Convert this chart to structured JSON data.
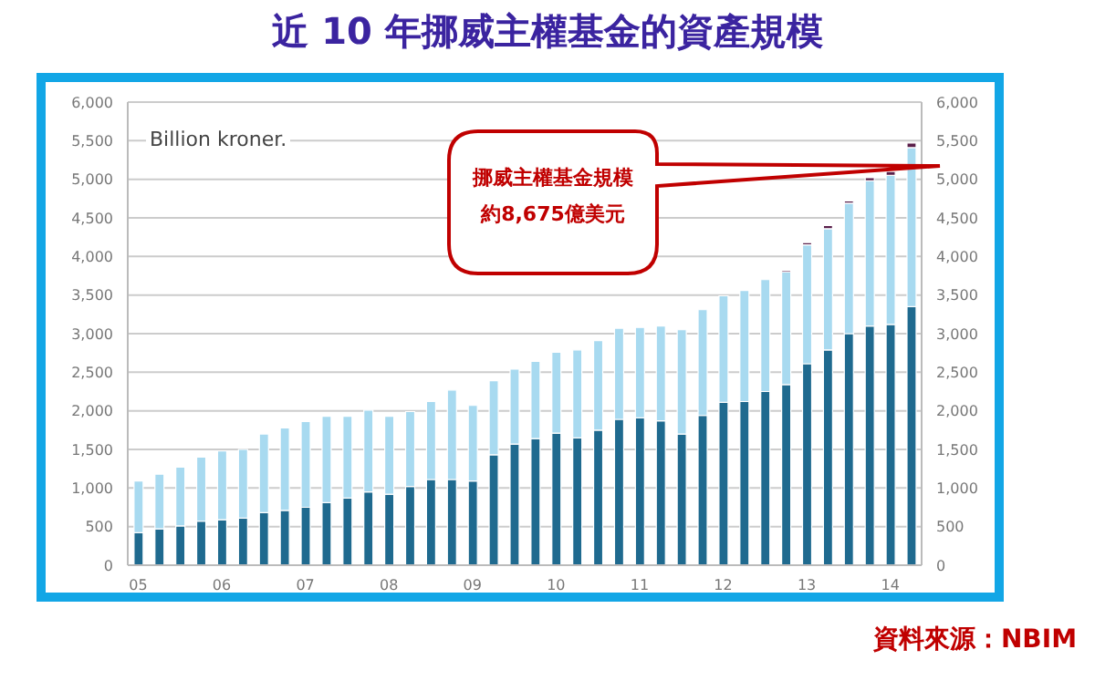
{
  "chart_data": {
    "type": "bar",
    "title": "近 10 年挪威主權基金的資產規模",
    "stacked": true,
    "grid": "y",
    "categories": [
      "05",
      null,
      null,
      null,
      "06",
      null,
      null,
      null,
      "07",
      null,
      null,
      null,
      "08",
      null,
      null,
      null,
      "09",
      null,
      null,
      null,
      "10",
      null,
      null,
      null,
      "11",
      null,
      null,
      null,
      "12",
      null,
      null,
      null,
      "13",
      null,
      null,
      null,
      "14",
      null
    ],
    "series": [
      {
        "color": "#1f6a8f",
        "values": [
          420,
          470,
          510,
          570,
          590,
          610,
          680,
          710,
          750,
          810,
          870,
          950,
          920,
          1020,
          1110,
          1110,
          1090,
          1430,
          1570,
          1640,
          1710,
          1650,
          1750,
          1890,
          1910,
          1870,
          1700,
          1940,
          2110,
          2120,
          2250,
          2340,
          2610,
          2790,
          3000,
          3100,
          3120,
          3350
        ]
      },
      {
        "color": "#a8daf0",
        "values": [
          670,
          710,
          760,
          830,
          890,
          890,
          1020,
          1070,
          1110,
          1120,
          1060,
          1060,
          1010,
          970,
          1010,
          1160,
          980,
          960,
          970,
          1000,
          1050,
          1140,
          1160,
          1180,
          1170,
          1230,
          1350,
          1370,
          1380,
          1440,
          1450,
          1460,
          1540,
          1570,
          1690,
          1880,
          1930,
          2060
        ]
      },
      {
        "color": "#5a1f4a",
        "values": [
          null,
          null,
          null,
          null,
          null,
          null,
          null,
          null,
          null,
          null,
          null,
          null,
          null,
          null,
          null,
          null,
          null,
          null,
          null,
          null,
          null,
          null,
          null,
          null,
          null,
          null,
          null,
          null,
          null,
          null,
          null,
          20,
          30,
          40,
          30,
          40,
          50,
          60
        ]
      }
    ],
    "ylim": [
      0,
      6000
    ],
    "yticks": [
      0,
      500,
      {
        "value": 1000,
        "label": "1,000"
      },
      {
        "value": 1500,
        "label": "1,500"
      },
      {
        "value": 2000,
        "label": "2,000"
      },
      {
        "value": 2500,
        "label": "2,500"
      },
      {
        "value": 3000,
        "label": "3,000"
      },
      {
        "value": 3500,
        "label": "3,500"
      },
      {
        "value": 4000,
        "label": "4,000"
      },
      {
        "value": 4500,
        "label": "4,500"
      },
      {
        "value": 5000,
        "label": "5,000"
      },
      {
        "value": 5500,
        "label": "5,500"
      },
      {
        "value": 6000,
        "label": "6,000"
      }
    ],
    "y2lim": [
      0,
      6000
    ],
    "y2ticks": [
      0,
      500,
      {
        "value": 1000,
        "label": "1,000"
      },
      {
        "value": 1500,
        "label": "1,500"
      },
      {
        "value": 2000,
        "label": "2,000"
      },
      {
        "value": 2500,
        "label": "2,500"
      },
      {
        "value": 3000,
        "label": "3,000"
      },
      {
        "value": 3500,
        "label": "3,500"
      },
      {
        "value": 4000,
        "label": "4,000"
      },
      {
        "value": 4500,
        "label": "4,500"
      },
      {
        "value": 5000,
        "label": "5,000"
      },
      {
        "value": 5500,
        "label": "5,500"
      },
      {
        "value": 6000,
        "label": "6,000"
      }
    ],
    "annotations": [
      "Billion kroner.",
      "挪威主權基金規模",
      "約8,675億美元",
      "資料來源：NBIM"
    ]
  }
}
